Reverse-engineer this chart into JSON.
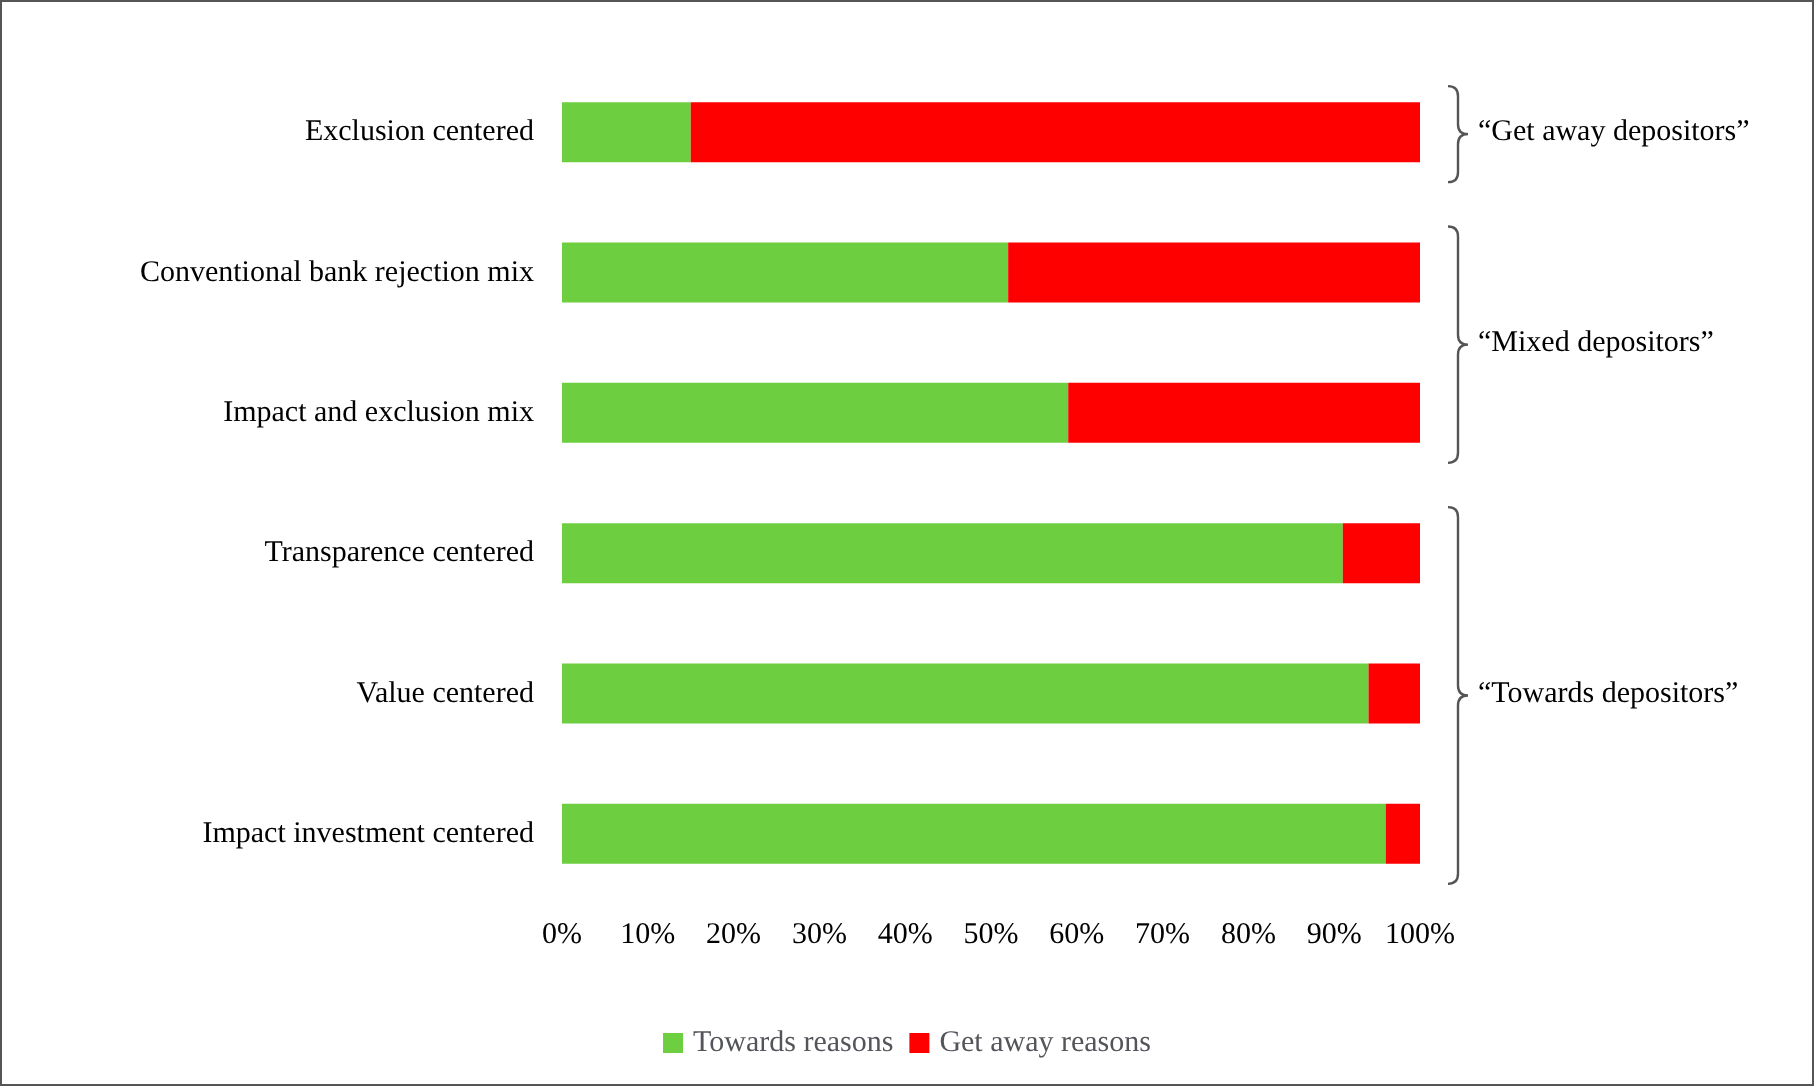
{
  "chart_data": {
    "type": "bar",
    "orientation": "horizontal",
    "stacked": true,
    "categories": [
      "Exclusion centered",
      "Conventional bank rejection mix",
      "Impact and exclusion mix",
      "Transparence centered",
      "Value centered",
      "Impact investment centered"
    ],
    "series": [
      {
        "name": "Towards reasons",
        "color": "#6dce3f",
        "values": [
          15,
          52,
          59,
          91,
          94,
          96
        ]
      },
      {
        "name": "Get away reasons",
        "color": "#ff0000",
        "values": [
          85,
          48,
          41,
          9,
          6,
          4
        ]
      }
    ],
    "xlim": [
      0,
      100
    ],
    "xticks": [
      {
        "value": 0,
        "label": "0%"
      },
      {
        "value": 10,
        "label": "10%"
      },
      {
        "value": 20,
        "label": "20%"
      },
      {
        "value": 30,
        "label": "30%"
      },
      {
        "value": 40,
        "label": "40%"
      },
      {
        "value": 50,
        "label": "50%"
      },
      {
        "value": 60,
        "label": "60%"
      },
      {
        "value": 70,
        "label": "70%"
      },
      {
        "value": 80,
        "label": "80%"
      },
      {
        "value": 90,
        "label": "90%"
      },
      {
        "value": 100,
        "label": "100%"
      }
    ],
    "annotations": [
      "“Get away depositors”",
      "“Mixed depositors”",
      "“Towards depositors”"
    ],
    "legend": "bottom",
    "grid": false
  }
}
